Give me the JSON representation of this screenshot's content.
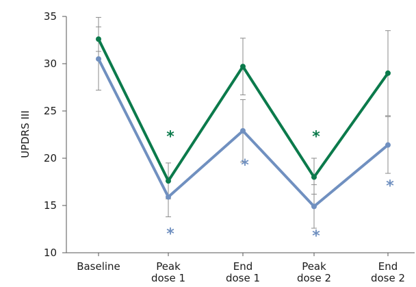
{
  "chart_data": {
    "type": "line",
    "title": "",
    "ylabel": "UPDRS III",
    "xlabel": "",
    "ylim": [
      10,
      35
    ],
    "yticks": [
      "10",
      "15",
      "20",
      "25",
      "30",
      "35"
    ],
    "categories": [
      [
        "Baseline"
      ],
      [
        "Peak",
        "dose 1"
      ],
      [
        "End",
        "dose 1"
      ],
      [
        "Peak",
        "dose 2"
      ],
      [
        "End",
        "dose 2"
      ]
    ],
    "grid": false,
    "legend": "none",
    "series": [
      {
        "color": "#0b7a4b",
        "values": [
          32.6,
          17.6,
          29.7,
          18.0,
          29.0
        ],
        "error_low": [
          31.3,
          15.7,
          26.7,
          16.2,
          24.5
        ],
        "error_high": [
          33.9,
          19.5,
          32.7,
          20.0,
          33.5
        ],
        "significance_markers": [
          "",
          "*",
          "",
          "*",
          ""
        ],
        "marker_positions": [
          null,
          22.5,
          null,
          22.5,
          null
        ]
      },
      {
        "color": "#7090c0",
        "values": [
          30.5,
          15.9,
          22.9,
          14.9,
          21.4
        ],
        "error_low": [
          27.2,
          13.8,
          19.6,
          12.6,
          18.4
        ],
        "error_high": [
          34.9,
          18.0,
          26.2,
          17.2,
          24.4
        ],
        "significance_markers": [
          "",
          "*",
          "*",
          "*",
          "*"
        ],
        "marker_positions": [
          null,
          12.2,
          19.5,
          12.0,
          17.3
        ]
      }
    ]
  }
}
